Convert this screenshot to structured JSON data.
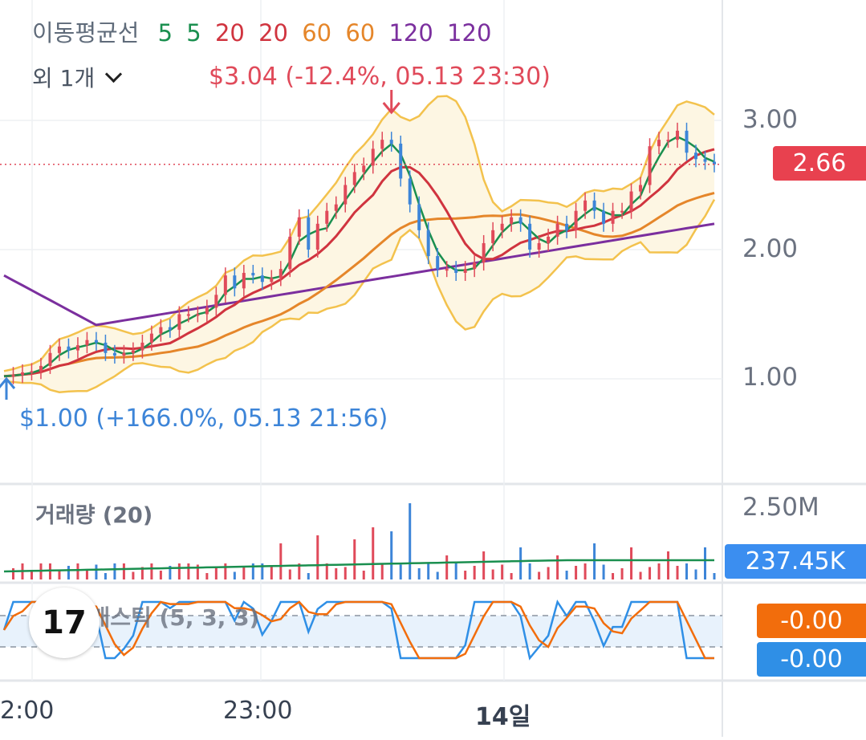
{
  "legend": {
    "label": "이동평균선",
    "items": [
      {
        "text": "5",
        "color": "#1a8f4f"
      },
      {
        "text": "5",
        "color": "#1a8f4f"
      },
      {
        "text": "20",
        "color": "#d0343f"
      },
      {
        "text": "20",
        "color": "#d0343f"
      },
      {
        "text": "60",
        "color": "#e5862a"
      },
      {
        "text": "60",
        "color": "#e5862a"
      },
      {
        "text": "120",
        "color": "#7b2f9e"
      },
      {
        "text": "120",
        "color": "#7b2f9e"
      }
    ],
    "more": "외 1개"
  },
  "annotations": {
    "high": "$3.04 (-12.4%, 05.13 23:30)",
    "low": "$1.00 (+166.0%, 05.13 21:56)"
  },
  "y_axis": {
    "labels": [
      "3.00",
      "2.00",
      "1.00"
    ]
  },
  "price_badge": {
    "value": "2.66",
    "color": "#e8414f"
  },
  "volume": {
    "title": "거래량 (20)",
    "max_label": "2.50M",
    "badge": "237.45K",
    "badge_color": "#3b8ef0"
  },
  "stochastic": {
    "title": "스토캐스틱 (5, 3, 3)",
    "badge_k": "-0.00",
    "badge_k_color": "#f26d0c",
    "badge_d": "-0.00",
    "badge_d_color": "#2f8fe6"
  },
  "logo_text": "17",
  "x_axis": {
    "labels": [
      "2:00",
      "23:00",
      "14일"
    ]
  },
  "chart_data": {
    "type": "candlestick",
    "y_range": [
      0.2,
      3.5
    ],
    "y_ticks": [
      1.0,
      2.0,
      3.0
    ],
    "last_price": 2.66,
    "high": {
      "price": 3.04,
      "time": "05.13 23:30"
    },
    "low": {
      "price": 1.0,
      "time": "05.13 21:56"
    },
    "close": [
      1.02,
      1.03,
      1.05,
      1.06,
      1.1,
      1.2,
      1.25,
      1.22,
      1.26,
      1.3,
      1.28,
      1.2,
      1.18,
      1.2,
      1.22,
      1.28,
      1.35,
      1.4,
      1.38,
      1.5,
      1.5,
      1.5,
      1.55,
      1.65,
      1.8,
      1.7,
      1.82,
      1.8,
      1.75,
      1.78,
      1.85,
      2.1,
      2.25,
      2.0,
      2.2,
      2.3,
      2.35,
      2.5,
      2.6,
      2.65,
      2.78,
      2.85,
      2.82,
      2.55,
      2.35,
      2.15,
      1.95,
      1.85,
      1.85,
      1.82,
      1.85,
      1.9,
      2.05,
      2.15,
      2.2,
      2.25,
      2.2,
      2.0,
      2.05,
      2.1,
      2.2,
      2.15,
      2.3,
      2.38,
      2.3,
      2.2,
      2.3,
      2.3,
      2.45,
      2.5,
      2.8,
      2.85,
      2.85,
      2.92,
      2.75,
      2.7,
      2.68,
      2.66
    ]
  }
}
